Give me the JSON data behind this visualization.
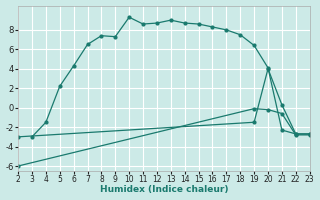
{
  "xlabel": "Humidex (Indice chaleur)",
  "bg_color": "#cceae7",
  "grid_color": "#ffffff",
  "line_color": "#1a7a6e",
  "xlim": [
    2,
    23
  ],
  "ylim": [
    -6.5,
    10.5
  ],
  "xticks": [
    2,
    3,
    4,
    5,
    6,
    7,
    8,
    9,
    10,
    11,
    12,
    13,
    14,
    15,
    16,
    17,
    18,
    19,
    20,
    21,
    22,
    23
  ],
  "yticks": [
    -6,
    -4,
    -2,
    0,
    2,
    4,
    6,
    8
  ],
  "curve1_x": [
    3,
    4,
    5,
    6,
    7,
    8,
    9,
    10,
    11,
    12,
    13,
    14,
    15,
    16,
    17,
    18,
    19,
    20,
    21,
    22,
    23
  ],
  "curve1_y": [
    -3.0,
    -1.5,
    2.2,
    4.3,
    6.5,
    7.4,
    7.3,
    9.3,
    8.6,
    8.7,
    9.0,
    8.7,
    8.6,
    8.3,
    8.0,
    7.5,
    6.4,
    4.1,
    -2.3,
    -2.7,
    -2.7
  ],
  "curve2_x": [
    2,
    19,
    20,
    21,
    22,
    23
  ],
  "curve2_y": [
    -3.0,
    -1.5,
    4.0,
    0.3,
    -2.7,
    -2.7
  ],
  "curve3_x": [
    2,
    19,
    20,
    21,
    22,
    23
  ],
  "curve3_y": [
    -6.0,
    -0.1,
    -0.2,
    -0.6,
    -2.8,
    -2.8
  ]
}
